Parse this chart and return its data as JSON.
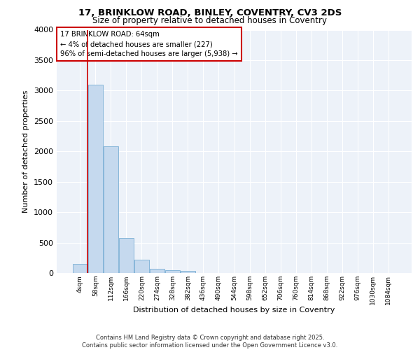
{
  "title1": "17, BRINKLOW ROAD, BINLEY, COVENTRY, CV3 2DS",
  "title2": "Size of property relative to detached houses in Coventry",
  "xlabel": "Distribution of detached houses by size in Coventry",
  "ylabel": "Number of detached properties",
  "bar_counts": [
    150,
    3100,
    2080,
    580,
    220,
    70,
    45,
    30,
    5,
    0,
    0,
    0,
    0,
    0,
    0,
    0,
    0,
    0,
    0,
    0,
    0
  ],
  "bin_labels": [
    "4sqm",
    "58sqm",
    "112sqm",
    "166sqm",
    "220sqm",
    "274sqm",
    "328sqm",
    "382sqm",
    "436sqm",
    "490sqm",
    "544sqm",
    "598sqm",
    "652sqm",
    "706sqm",
    "760sqm",
    "814sqm",
    "868sqm",
    "922sqm",
    "976sqm",
    "1030sqm",
    "1084sqm"
  ],
  "bar_color": "#c5d9ee",
  "bar_edge_color": "#7aafd4",
  "annotation_box_text": "17 BRINKLOW ROAD: 64sqm\n← 4% of detached houses are smaller (227)\n96% of semi-detached houses are larger (5,938) →",
  "vline_color": "#cc0000",
  "box_edge_color": "#cc0000",
  "background_color": "#edf2f9",
  "grid_color_major": "#ffffff",
  "footer": "Contains HM Land Registry data © Crown copyright and database right 2025.\nContains public sector information licensed under the Open Government Licence v3.0.",
  "ylim": [
    0,
    4000
  ],
  "yticks": [
    0,
    500,
    1000,
    1500,
    2000,
    2500,
    3000,
    3500,
    4000
  ]
}
